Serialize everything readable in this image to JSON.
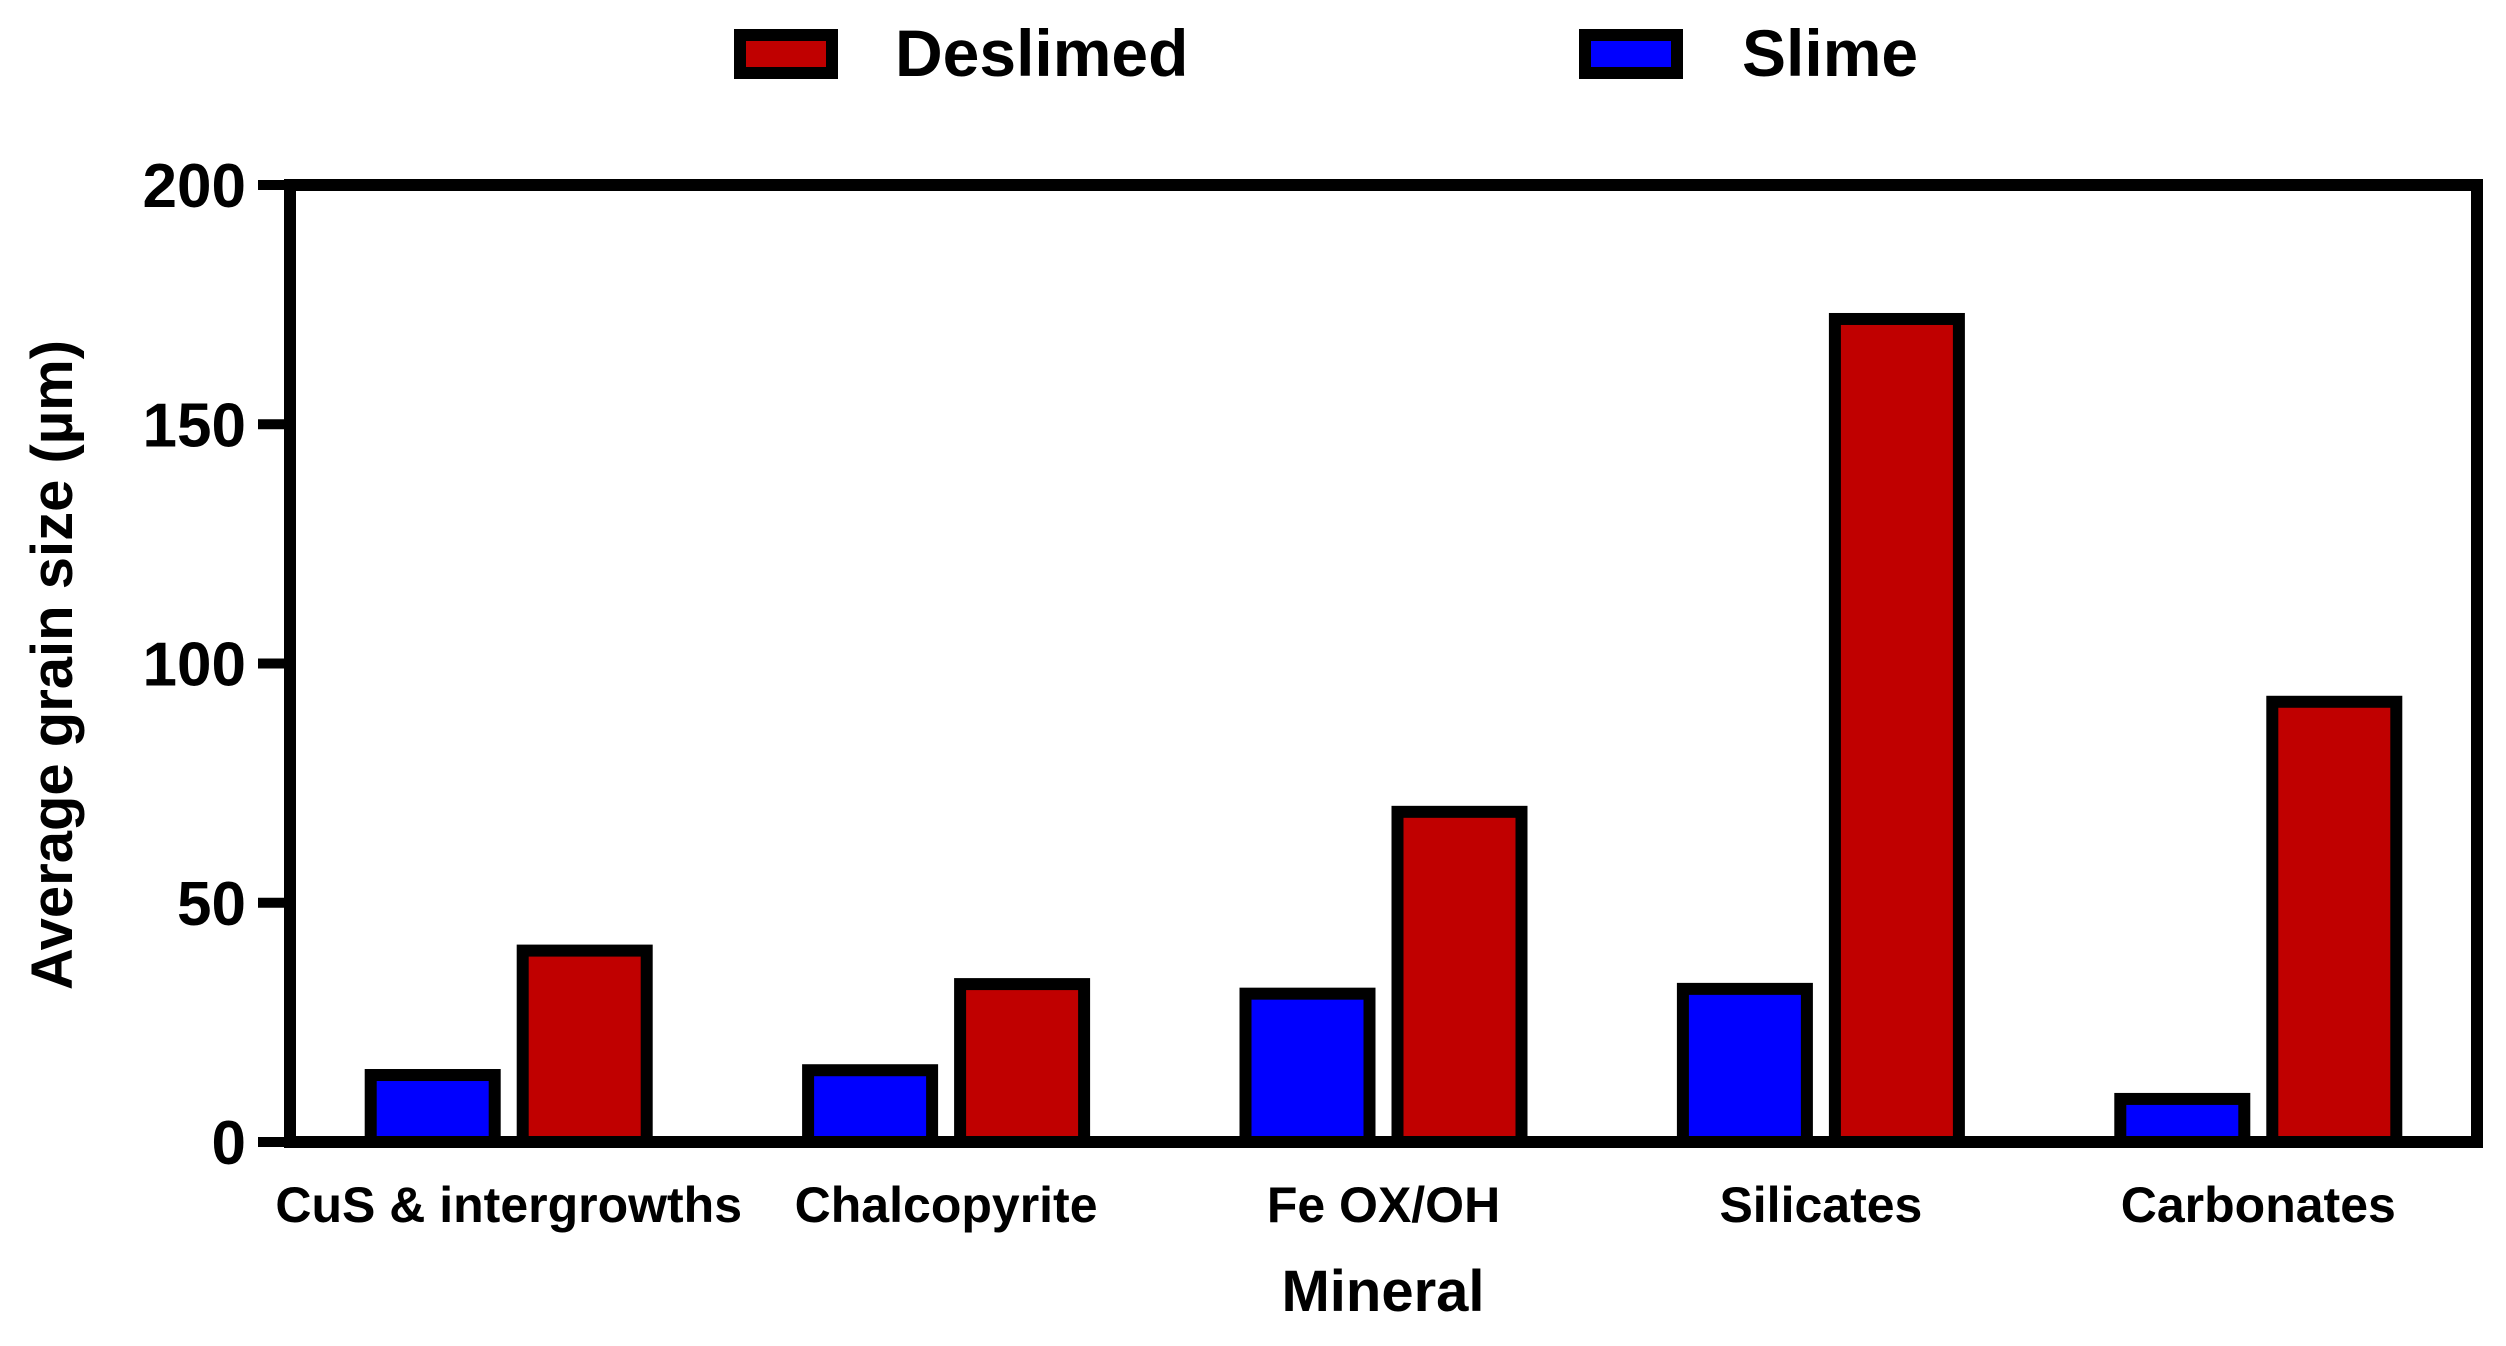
{
  "chart_data": {
    "type": "bar",
    "title": "",
    "xlabel": "Mineral",
    "ylabel": "Average grain size (µm)",
    "categories": [
      "CuS & intergrowths",
      "Chalcopyrite",
      "Fe OX/OH",
      "Silicates",
      "Carbonates"
    ],
    "series": [
      {
        "name": "Slime",
        "color": "#0000ff",
        "values": [
          14,
          15,
          31,
          32,
          9
        ]
      },
      {
        "name": "Deslimed",
        "color": "#c00000",
        "values": [
          40,
          33,
          69,
          172,
          92
        ]
      }
    ],
    "legend_order": [
      "Deslimed",
      "Slime"
    ],
    "legend_position": "top-center",
    "ylim": [
      0,
      200
    ],
    "yticks": [
      0,
      50,
      100,
      150,
      200
    ]
  }
}
